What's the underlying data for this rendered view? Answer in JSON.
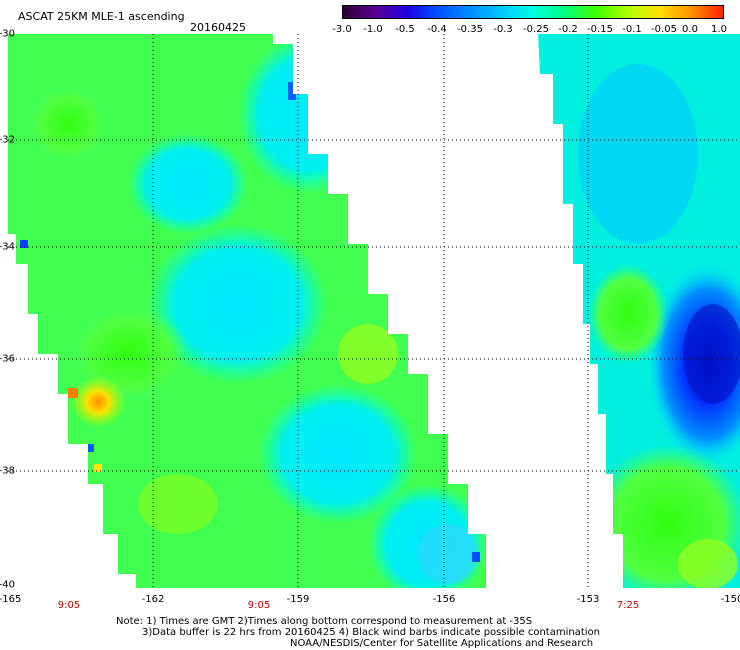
{
  "header": {
    "title": "ASCAT 25KM MLE-1 ascending",
    "date": "20160425"
  },
  "colorbar": {
    "labels": [
      "-3.0",
      "-1.0",
      "-0.5",
      "-0.4",
      "-0.35",
      "-0.3",
      "-0.25",
      "-0.2",
      "-0.15",
      "-0.1",
      "-0.05",
      "0.0",
      "1.0"
    ],
    "colors": [
      "#2b0030",
      "#5a0090",
      "#1f00e0",
      "#0050ff",
      "#008cff",
      "#00c8ff",
      "#00ffe0",
      "#00ff80",
      "#40ff00",
      "#b0ff00",
      "#ffe000",
      "#ff9000",
      "#ff2000"
    ]
  },
  "map": {
    "lat_labels": [
      "-30",
      "-32",
      "-34",
      "-36",
      "-38",
      "-40"
    ],
    "lon_labels": [
      "-165",
      "-162",
      "-159",
      "-156",
      "-153",
      "-150"
    ],
    "time_labels": [
      "9:05",
      "9:05",
      "7:25"
    ]
  },
  "notes": {
    "line1": "Note: 1) Times are GMT 2)Times along bottom correspond to measurement at -35S",
    "line2": "3)Data buffer is 22 hrs from 20160425 4) Black wind barbs indicate possible contamination",
    "line3": "NOAA/NESDIS/Center for Satellite Applications and Research"
  }
}
